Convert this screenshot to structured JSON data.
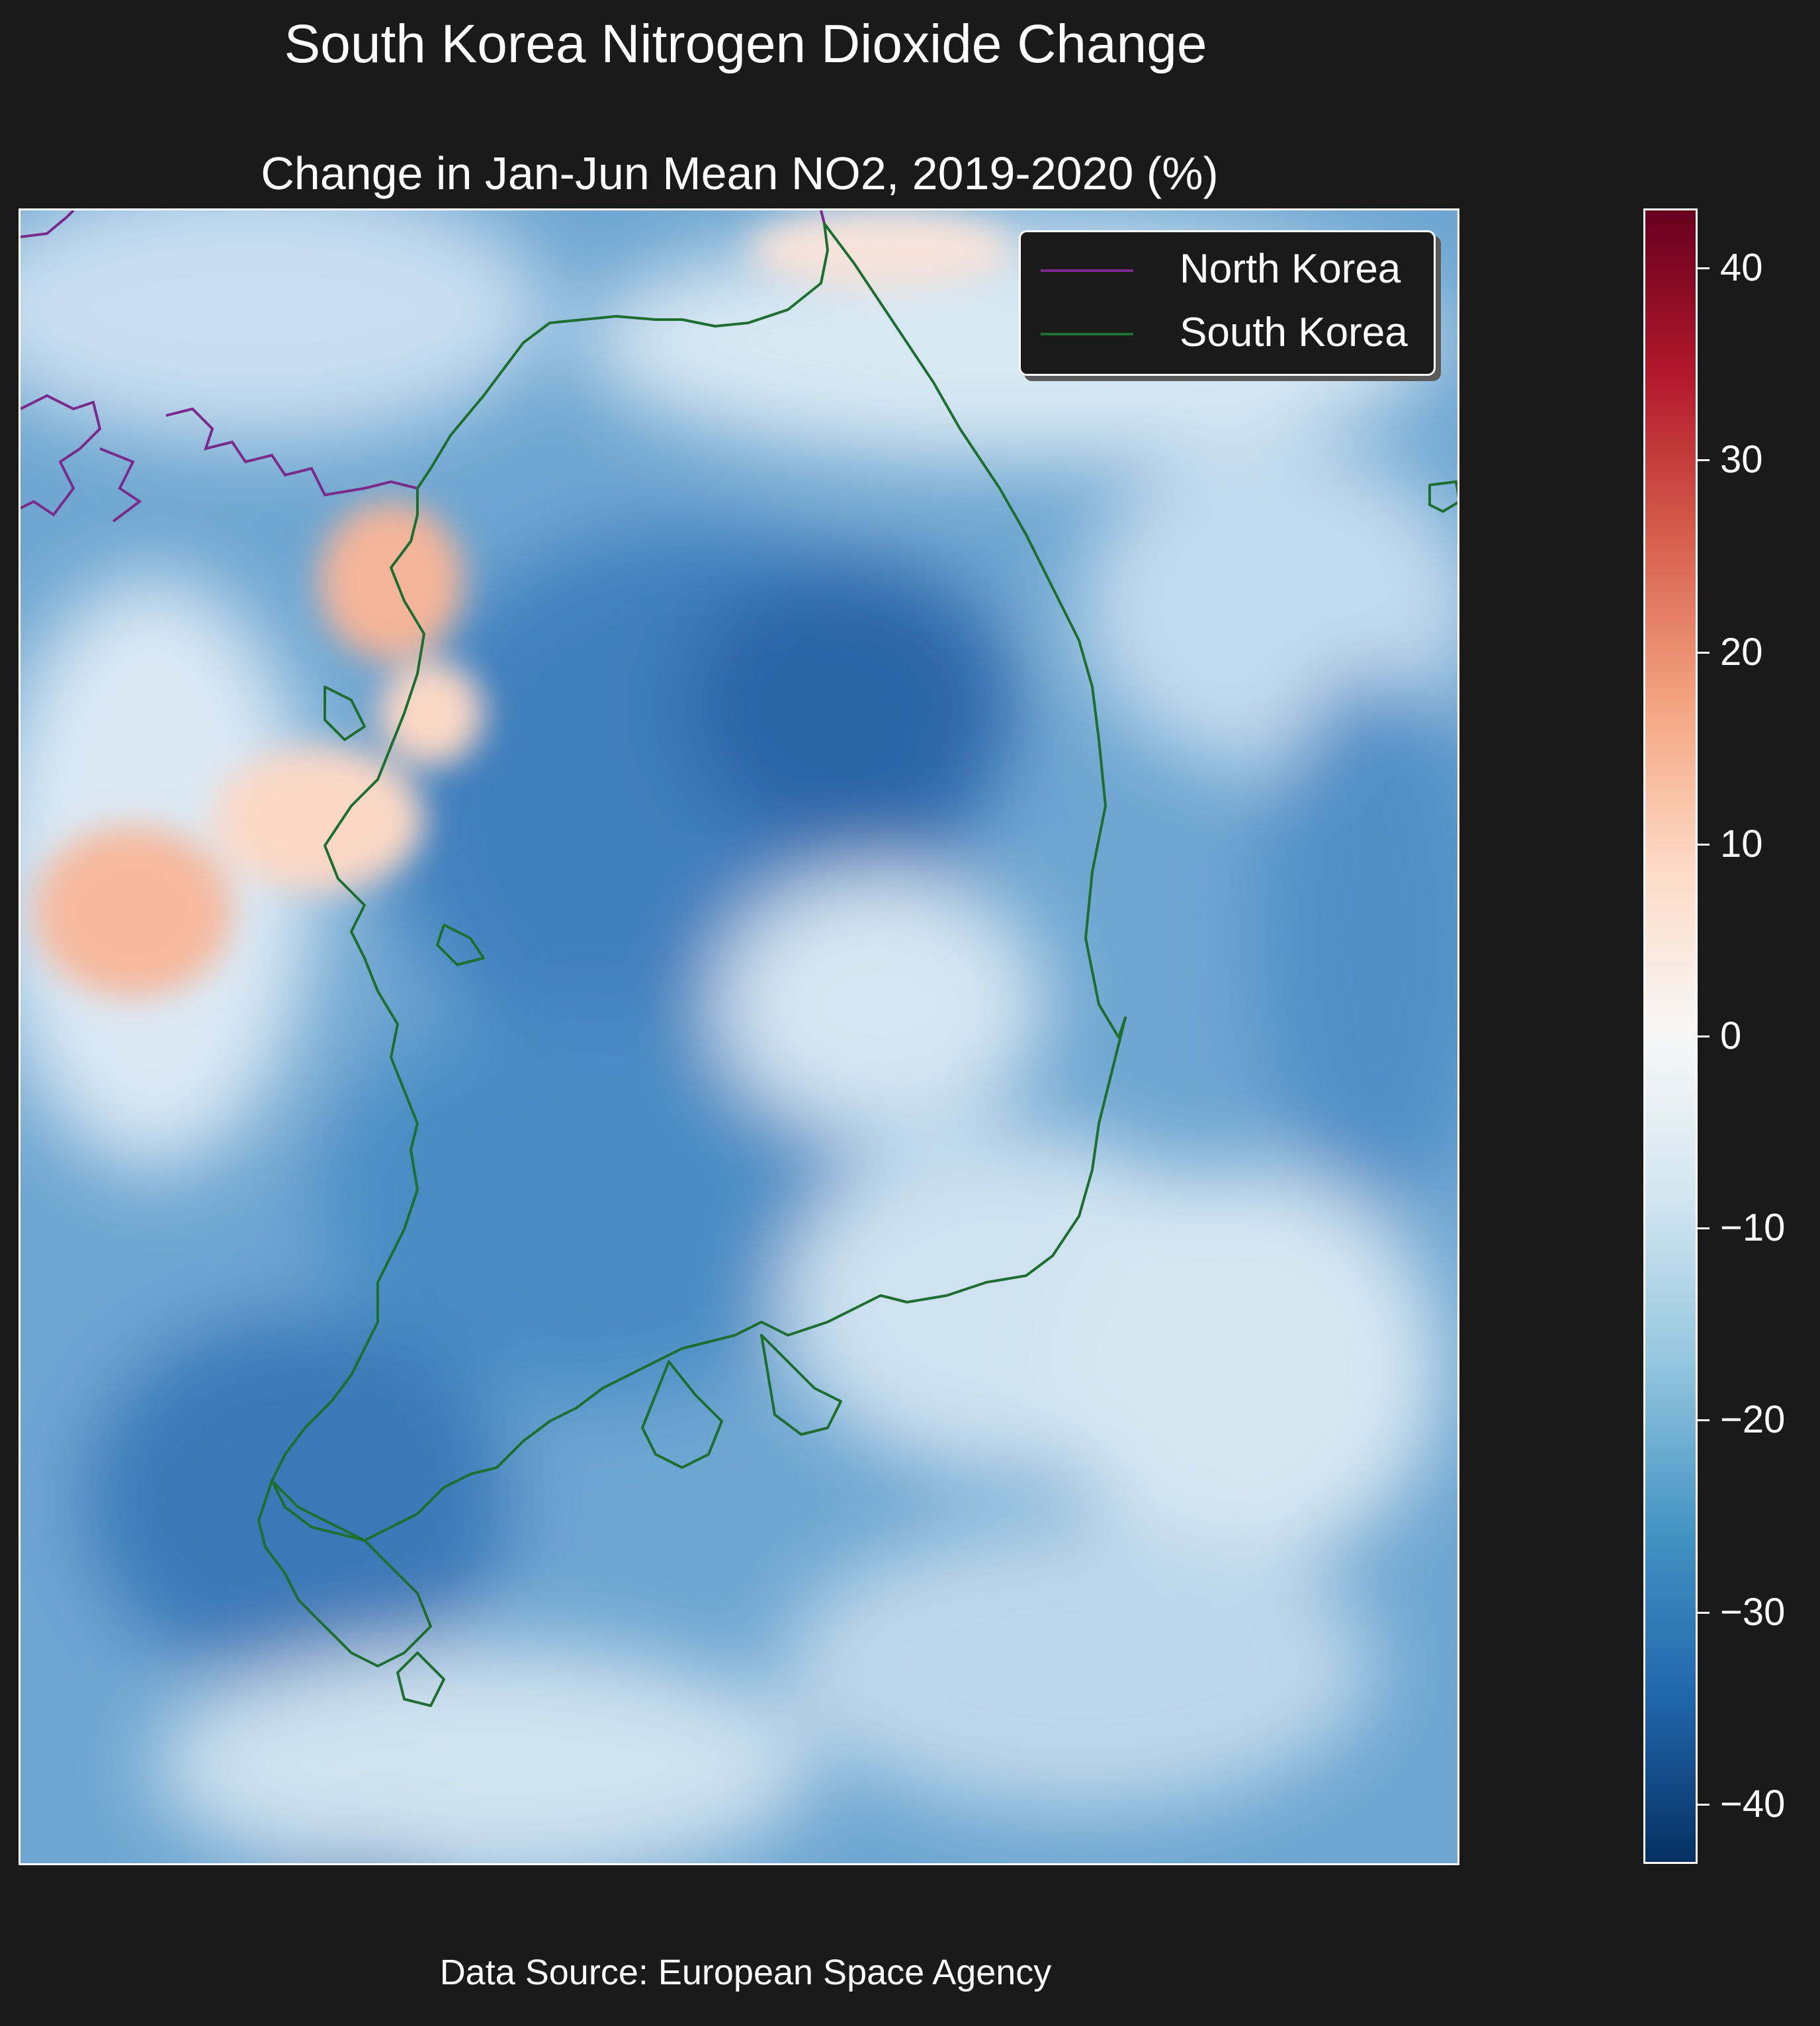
{
  "title": "South Korea Nitrogen Dioxide Change",
  "subtitle": "Change in Jan-Jun Mean NO2, 2019-2020 (%)",
  "source": "Data Source: European Space Agency",
  "legend": {
    "placement": "top-right",
    "items": [
      {
        "label": "North Korea",
        "color": "#7a2a8a"
      },
      {
        "label": "South Korea",
        "color": "#1e6e32"
      }
    ]
  },
  "colorbar": {
    "colormap": "RdBu_r",
    "range": [
      -43,
      43
    ],
    "ticks": [
      {
        "value": 40,
        "label": "40"
      },
      {
        "value": 30,
        "label": "30"
      },
      {
        "value": 20,
        "label": "20"
      },
      {
        "value": 10,
        "label": "10"
      },
      {
        "value": 0,
        "label": "0"
      },
      {
        "value": -10,
        "label": "−10"
      },
      {
        "value": -20,
        "label": "−20"
      },
      {
        "value": -30,
        "label": "−30"
      },
      {
        "value": -40,
        "label": "−40"
      }
    ],
    "stops": [
      "#053061",
      "#2166ac",
      "#4393c3",
      "#92c5de",
      "#d1e5f0",
      "#f7f7f7",
      "#fddbc7",
      "#f4a582",
      "#d6604d",
      "#b2182b",
      "#67001f"
    ]
  },
  "map": {
    "background_color": "#5d97c9",
    "north_korea_color": "#7a2a8a",
    "south_korea_color": "#1e6e32"
  }
}
